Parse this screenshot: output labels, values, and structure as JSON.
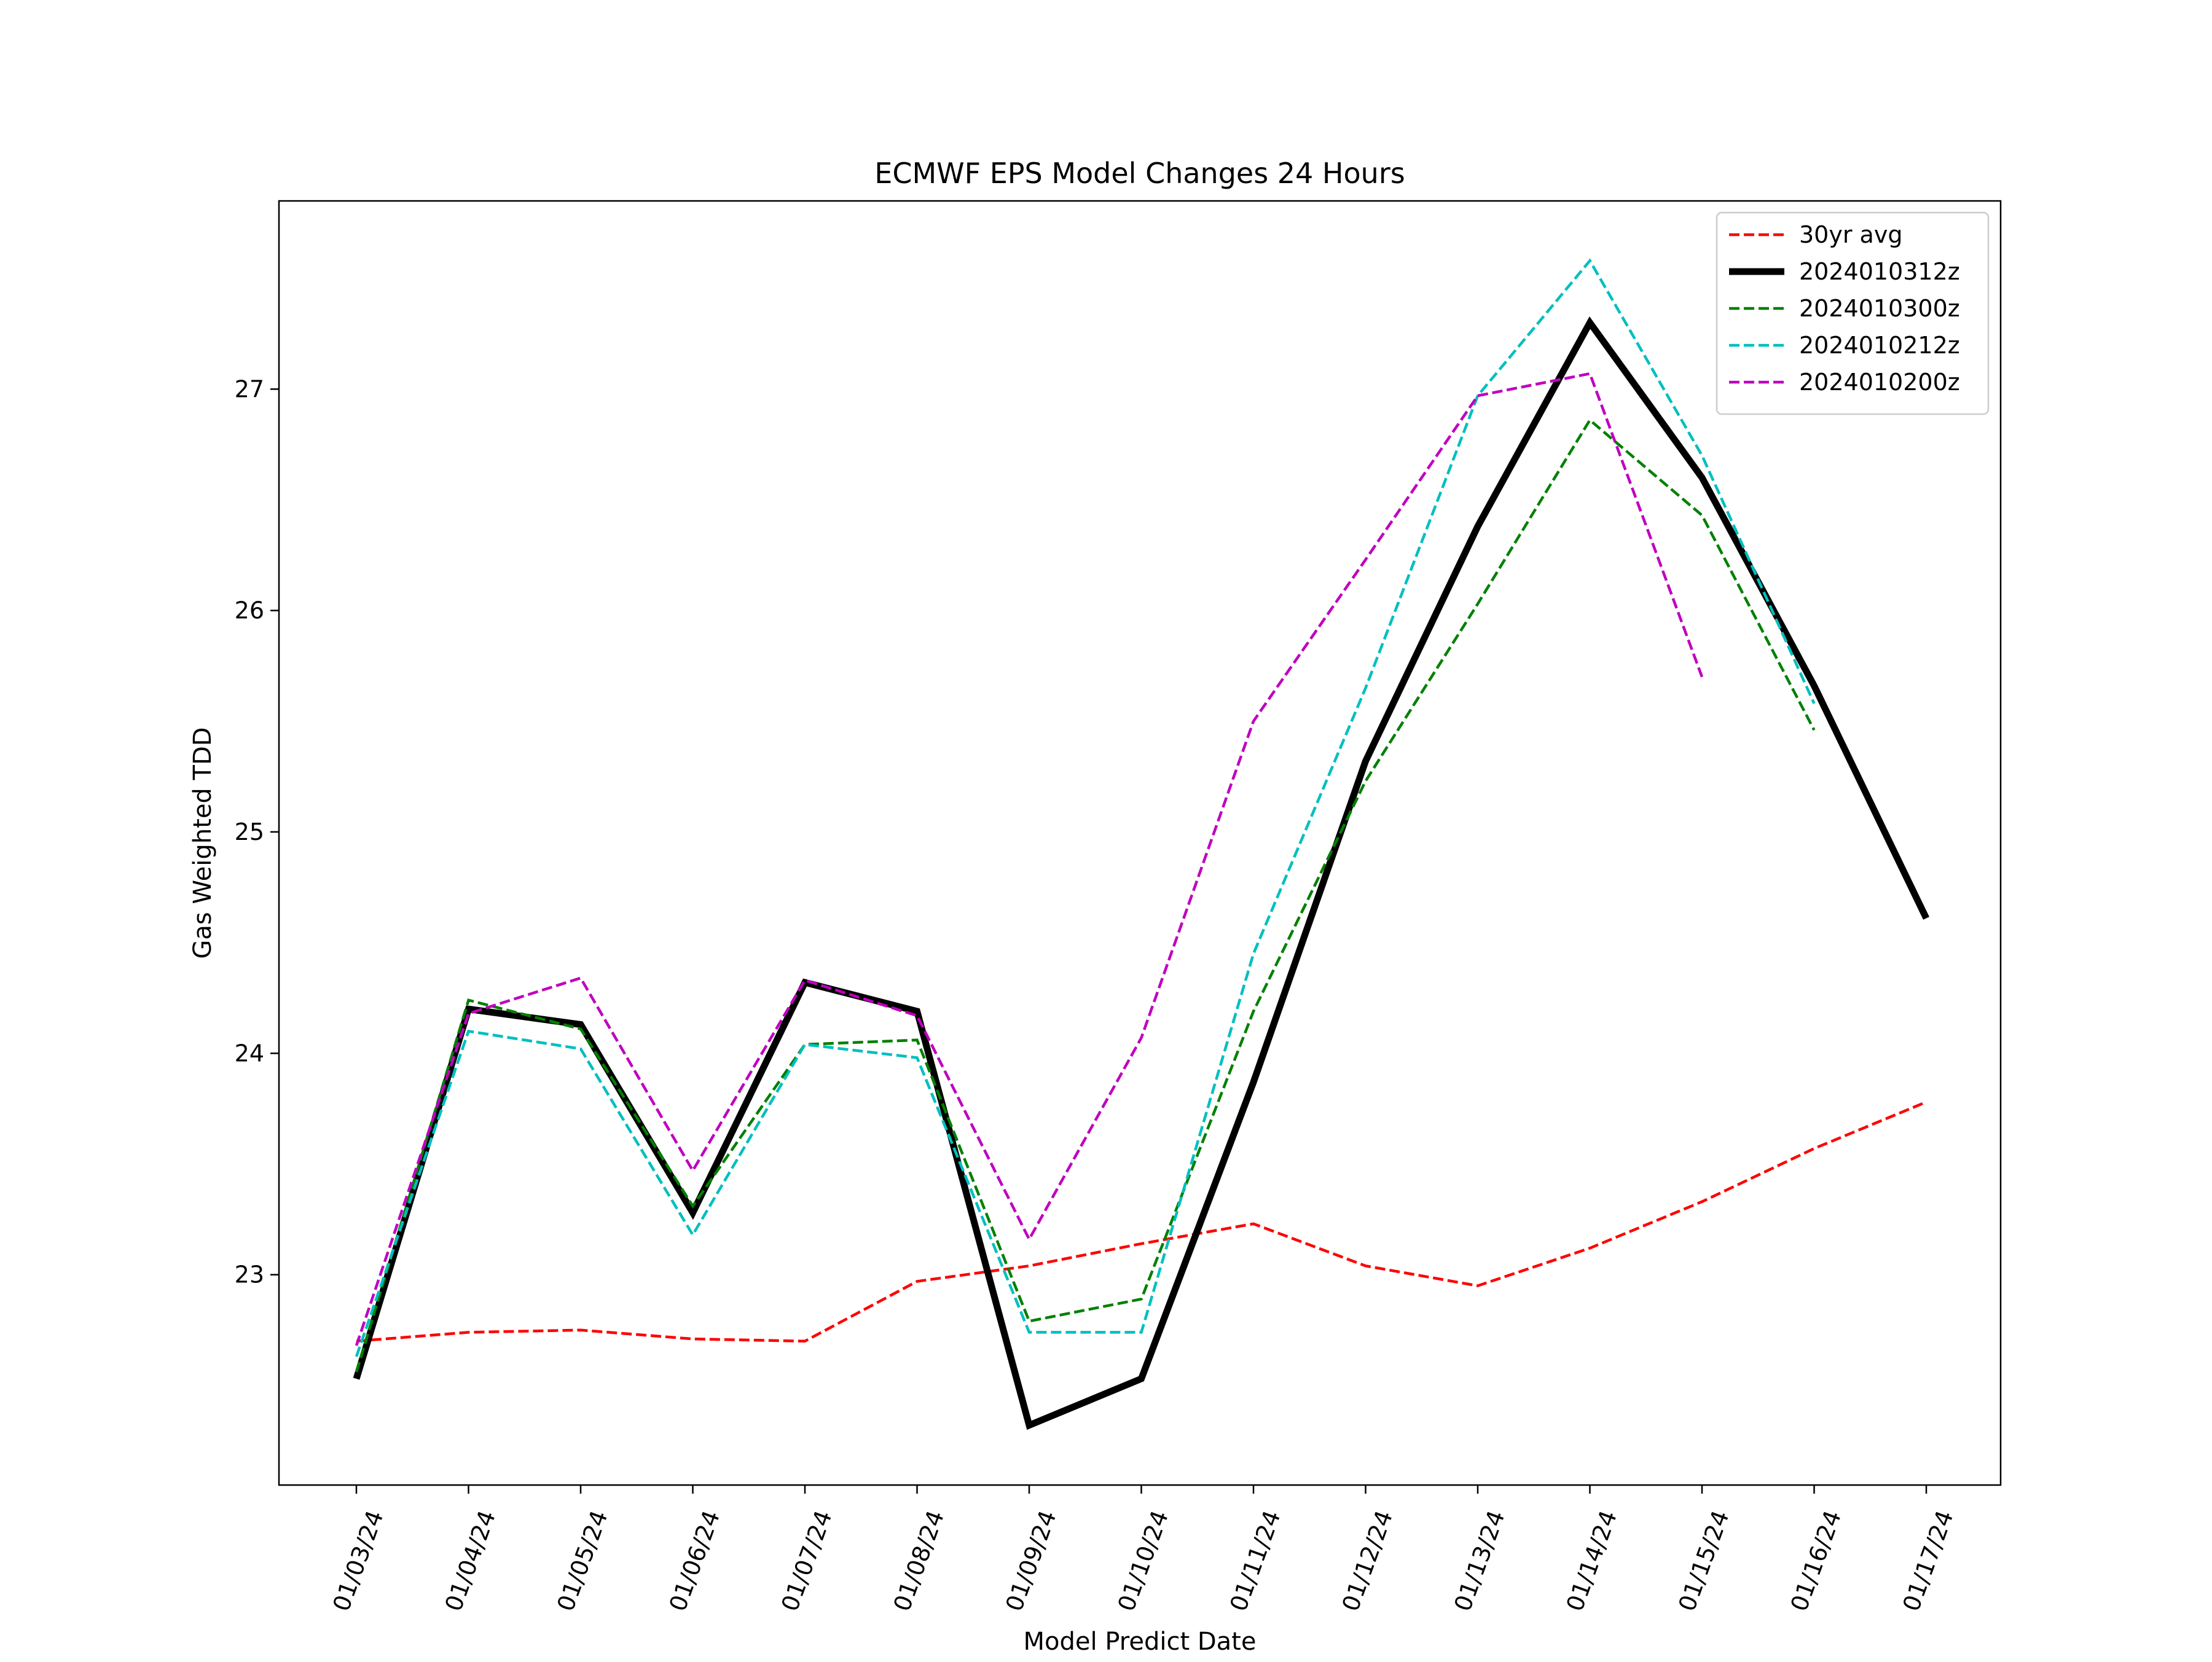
{
  "chart_data": {
    "type": "line",
    "title": "ECMWF EPS Model Changes 24 Hours",
    "xlabel": "Model Predict Date",
    "ylabel": "Gas Weighted TDD",
    "categories": [
      "01/03/24",
      "01/04/24",
      "01/05/24",
      "01/06/24",
      "01/07/24",
      "01/08/24",
      "01/09/24",
      "01/10/24",
      "01/11/24",
      "01/12/24",
      "01/13/24",
      "01/14/24",
      "01/15/24",
      "01/16/24",
      "01/17/24"
    ],
    "ylim": [
      22.05,
      27.85
    ],
    "yticks": [
      23,
      24,
      25,
      26,
      27
    ],
    "grid": false,
    "legend_position": "top-right",
    "series": [
      {
        "name": "30yr avg",
        "color": "#ff0000",
        "style": "dashed",
        "width": "normal",
        "values": [
          22.7,
          22.74,
          22.75,
          22.71,
          22.7,
          22.97,
          23.04,
          23.14,
          23.23,
          23.04,
          22.95,
          23.12,
          23.33,
          23.57,
          23.78
        ]
      },
      {
        "name": "2024010312z",
        "color": "#000000",
        "style": "solid",
        "width": "thick",
        "values": [
          22.53,
          24.2,
          24.13,
          23.28,
          24.32,
          24.19,
          22.32,
          22.53,
          23.87,
          25.32,
          26.38,
          27.3,
          26.6,
          25.66,
          24.61
        ]
      },
      {
        "name": "2024010300z",
        "color": "#008000",
        "style": "dashed",
        "width": "normal",
        "values": [
          22.56,
          24.24,
          24.11,
          23.31,
          24.04,
          24.06,
          22.79,
          22.89,
          24.19,
          25.23,
          26.03,
          26.86,
          26.43,
          25.46,
          null
        ]
      },
      {
        "name": "2024010212z",
        "color": "#00bfbf",
        "style": "dashed",
        "width": "normal",
        "values": [
          22.63,
          24.1,
          24.02,
          23.18,
          24.04,
          23.98,
          22.74,
          22.74,
          24.45,
          25.65,
          26.97,
          27.58,
          26.7,
          25.58,
          null
        ]
      },
      {
        "name": "2024010200z",
        "color": "#bf00bf",
        "style": "dashed",
        "width": "normal",
        "values": [
          22.68,
          24.18,
          24.34,
          23.47,
          24.33,
          24.17,
          23.16,
          24.07,
          25.5,
          26.23,
          26.97,
          27.07,
          25.7,
          null,
          null
        ]
      }
    ]
  }
}
